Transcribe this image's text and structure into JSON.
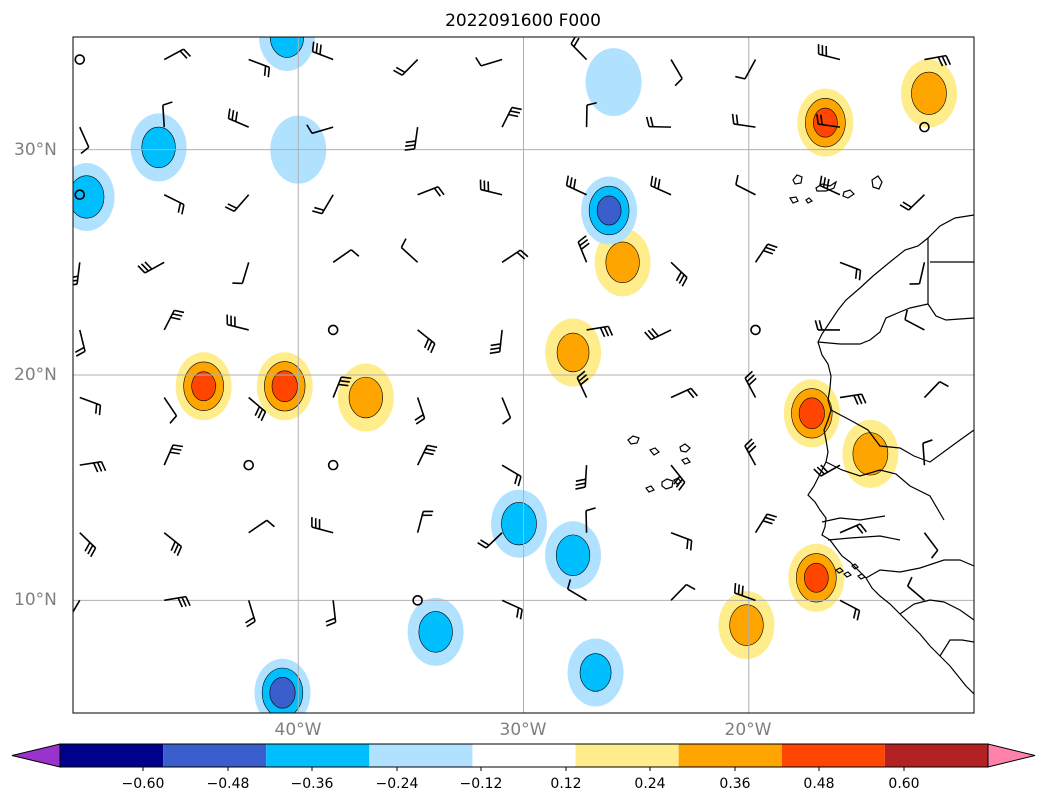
{
  "title": "2022091600 F000",
  "map": {
    "lat_range": [
      5,
      35
    ],
    "lon_range": [
      -50,
      -10
    ],
    "lat_ticks": [
      {
        "value": 30,
        "label": "30°N"
      },
      {
        "value": 20,
        "label": "20°N"
      },
      {
        "value": 10,
        "label": "10°N"
      }
    ],
    "lon_ticks": [
      {
        "value": -40,
        "label": "40°W"
      },
      {
        "value": -30,
        "label": "30°W"
      },
      {
        "value": -20,
        "label": "20°W"
      }
    ],
    "grid": true
  },
  "colorbar": {
    "colors": [
      "#9a32cd",
      "#00008b",
      "#3a5fcd",
      "#00bfff",
      "#b0e2ff",
      "#ffffff",
      "#ffec8b",
      "#ffa500",
      "#ff4500",
      "#b22222",
      "#ff82ab"
    ],
    "tick_labels": [
      "−0.60",
      "−0.48",
      "−0.36",
      "−0.24",
      "−0.12",
      "0.12",
      "0.24",
      "0.36",
      "0.48",
      "0.60"
    ]
  },
  "chart_data": {
    "type": "heatmap",
    "title": "2022091600 F000",
    "xlim": [
      -50,
      -10
    ],
    "ylim": [
      5,
      35
    ],
    "contour_levels": [
      -0.6,
      -0.48,
      -0.36,
      -0.24,
      -0.12,
      0.12,
      0.24,
      0.36,
      0.48,
      0.6
    ],
    "features": [
      {
        "lon": -44.2,
        "lat": 19.5,
        "peak": 0.4
      },
      {
        "lon": -40.6,
        "lat": 19.5,
        "peak": 0.42
      },
      {
        "lon": -37.0,
        "lat": 19.0,
        "peak": 0.28
      },
      {
        "lon": -27.8,
        "lat": 21.0,
        "peak": 0.26
      },
      {
        "lon": -25.6,
        "lat": 25.0,
        "peak": 0.28
      },
      {
        "lon": -16.6,
        "lat": 31.2,
        "peak": 0.4
      },
      {
        "lon": -12.0,
        "lat": 32.5,
        "peak": 0.3
      },
      {
        "lon": -17.2,
        "lat": 18.3,
        "peak": 0.42
      },
      {
        "lon": -14.6,
        "lat": 16.5,
        "peak": 0.3
      },
      {
        "lon": -17.0,
        "lat": 11.0,
        "peak": 0.4
      },
      {
        "lon": -20.1,
        "lat": 8.9,
        "peak": 0.28
      },
      {
        "lon": -40.7,
        "lat": 5.9,
        "peak": -0.42
      },
      {
        "lon": -33.9,
        "lat": 8.6,
        "peak": -0.28
      },
      {
        "lon": -30.2,
        "lat": 13.4,
        "peak": -0.3
      },
      {
        "lon": -27.8,
        "lat": 12.0,
        "peak": -0.28
      },
      {
        "lon": -26.2,
        "lat": 27.3,
        "peak": -0.4
      },
      {
        "lon": -46.2,
        "lat": 30.1,
        "peak": -0.28
      },
      {
        "lon": -49.4,
        "lat": 27.9,
        "peak": -0.3
      },
      {
        "lon": -40.0,
        "lat": 30.0,
        "peak": -0.2
      },
      {
        "lon": -26.0,
        "lat": 33.0,
        "peak": -0.2
      },
      {
        "lon": -40.5,
        "lat": 35.0,
        "peak": -0.28
      },
      {
        "lon": -26.8,
        "lat": 6.8,
        "peak": -0.25
      }
    ],
    "wind_barbs": "10x8 grid of wind barbs, lons -50 to -12 step ~3.75, lats 8 to 34 step ~3"
  }
}
